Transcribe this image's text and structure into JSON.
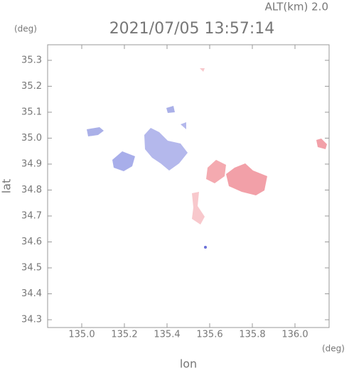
{
  "chart_data": {
    "type": "map",
    "altitude_label": "ALT(km)  2.0",
    "title": "2021/07/05 13:57:14",
    "y_unit": "(deg)",
    "x_unit": "(deg)",
    "x_label": "lon",
    "y_label": "lat",
    "xlim": [
      134.84,
      136.16
    ],
    "xticks": [
      {
        "value": 135.0,
        "label": "135.0"
      },
      135.2,
      135.4,
      135.6,
      135.8,
      {
        "value": 136.0,
        "label": "136.0"
      }
    ],
    "ylim": [
      34.27,
      35.36
    ],
    "yticks": [
      34.3,
      34.4,
      34.5,
      34.6,
      34.7,
      34.8,
      34.9,
      {
        "value": 35.0,
        "label": "35.0"
      },
      35.1,
      35.2,
      35.3
    ]
  }
}
